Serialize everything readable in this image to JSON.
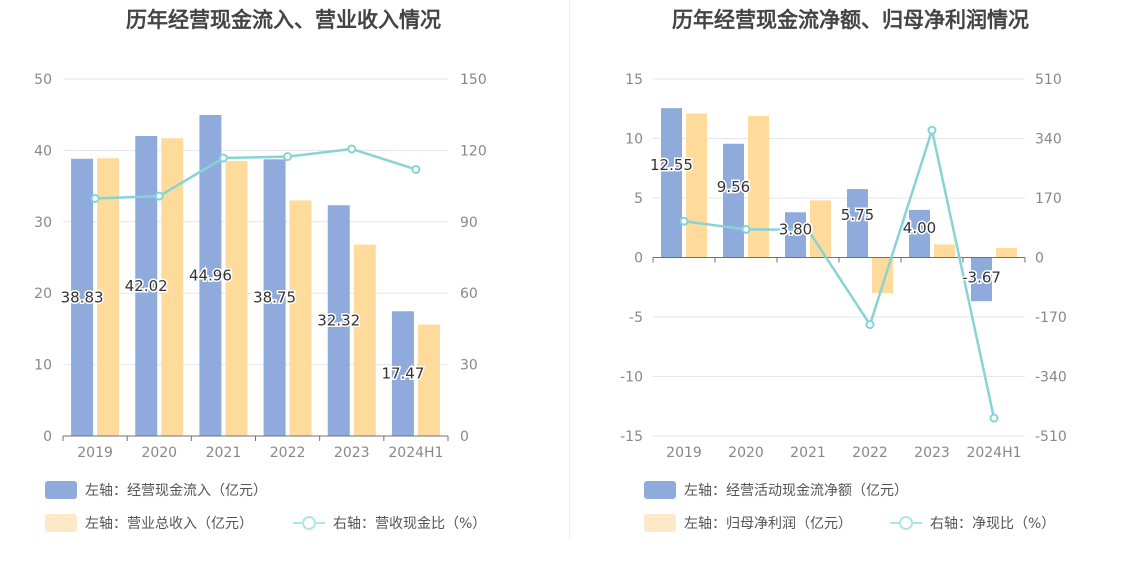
{
  "colors": {
    "bar_primary": "#8eabdc",
    "bar_secondary": "#fedb9a",
    "line": "#88d3d6",
    "legend_primary": "#8eabdc",
    "legend_secondary": "#fde9c8",
    "legend_line": "#aee5e8",
    "grid": "#e3e6f0",
    "tick_text": "#888888"
  },
  "chart_data": [
    {
      "type": "bar",
      "title": "历年经营现金流入、营业收入情况",
      "categories": [
        "2019",
        "2020",
        "2021",
        "2022",
        "2023",
        "2024H1"
      ],
      "left_axis": {
        "ticks": [
          "0",
          "10",
          "20",
          "30",
          "40",
          "50"
        ],
        "ylim": [
          0,
          50
        ]
      },
      "right_axis": {
        "ticks": [
          "0",
          "30",
          "60",
          "90",
          "120",
          "150"
        ],
        "ylim": [
          0,
          150
        ]
      },
      "series": [
        {
          "name": "左轴：经营现金流入（亿元）",
          "kind": "bar",
          "axis": "left",
          "values": [
            38.83,
            42.02,
            44.96,
            38.75,
            32.32,
            17.47
          ],
          "labels": [
            "38.83",
            "42.02",
            "44.96",
            "38.75",
            "32.32",
            "17.47"
          ]
        },
        {
          "name": "左轴：营业总收入（亿元）",
          "kind": "bar",
          "axis": "left",
          "values": [
            38.9,
            41.7,
            38.5,
            33.0,
            26.8,
            15.6
          ]
        },
        {
          "name": "右轴：营收现金比（%）",
          "kind": "line",
          "axis": "right",
          "values": [
            99.8,
            100.8,
            116.8,
            117.4,
            120.6,
            112.0
          ]
        }
      ],
      "grid": true,
      "legend_position": "bottom-left"
    },
    {
      "type": "bar",
      "title": "历年经营现金流净额、归母净利润情况",
      "categories": [
        "2019",
        "2020",
        "2021",
        "2022",
        "2023",
        "2024H1"
      ],
      "left_axis": {
        "ticks": [
          "-15",
          "-10",
          "-5",
          "0",
          "5",
          "10",
          "15"
        ],
        "ylim": [
          -15,
          15
        ]
      },
      "right_axis": {
        "ticks": [
          "-510",
          "-340",
          "-170",
          "0",
          "170",
          "340",
          "510"
        ],
        "ylim": [
          -510,
          510
        ]
      },
      "series": [
        {
          "name": "左轴：经营活动现金流净额（亿元）",
          "kind": "bar",
          "axis": "left",
          "values": [
            12.55,
            9.56,
            3.8,
            5.75,
            4.0,
            -3.67
          ],
          "labels": [
            "12.55",
            "9.56",
            "3.80",
            "5.75",
            "4.00",
            "-3.67"
          ]
        },
        {
          "name": "左轴：归母净利润（亿元）",
          "kind": "bar",
          "axis": "left",
          "values": [
            12.1,
            11.9,
            4.8,
            -3.0,
            1.1,
            0.8
          ]
        },
        {
          "name": "右轴：净现比（%）",
          "kind": "line",
          "axis": "right",
          "values": [
            103.7,
            80.3,
            79.2,
            -191.7,
            363.6,
            -458.8
          ]
        }
      ],
      "grid": true,
      "legend_position": "bottom-left"
    }
  ]
}
